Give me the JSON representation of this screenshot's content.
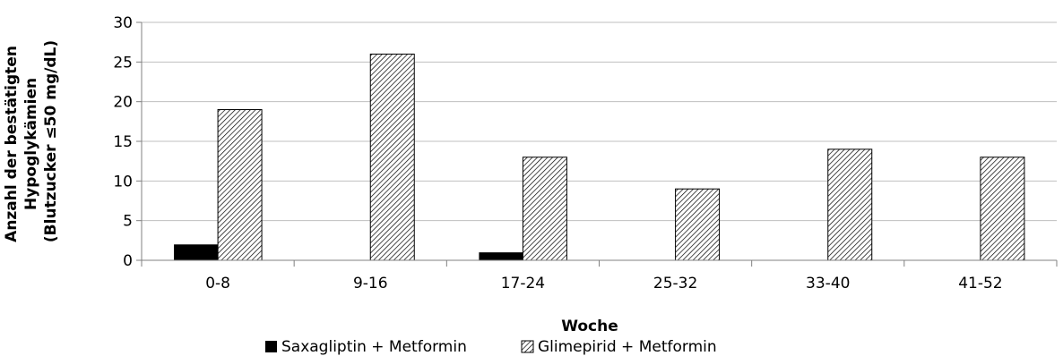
{
  "chart_data": {
    "type": "bar",
    "title": "",
    "xlabel": "Woche",
    "ylabel_lines": [
      "Anzahl der  bestätigten",
      "Hypoglykämien",
      "(Blutzucker ≤50 mg/dL)"
    ],
    "categories": [
      "0-8",
      "9-16",
      "17-24",
      "25-32",
      "33-40",
      "41-52"
    ],
    "ylim": [
      0,
      30
    ],
    "yticks": [
      0,
      5,
      10,
      15,
      20,
      25,
      30
    ],
    "grid": true,
    "legend_position": "bottom",
    "series": [
      {
        "name": "Saxagliptin + Metformin",
        "values": [
          2,
          0,
          1,
          0,
          0,
          0
        ],
        "fill": "solid",
        "color": "#000000"
      },
      {
        "name": "Glimepirid + Metformin",
        "values": [
          19,
          26,
          13,
          9,
          14,
          13
        ],
        "fill": "hatched",
        "color": "#000000"
      }
    ]
  }
}
